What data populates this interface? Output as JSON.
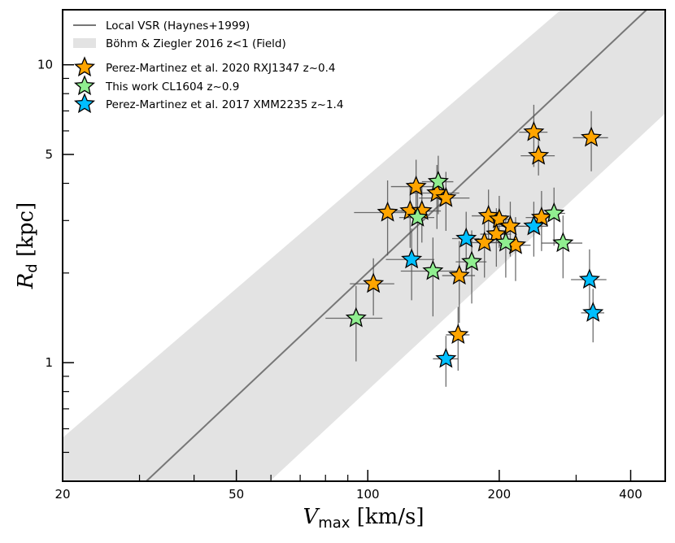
{
  "chart_data": {
    "type": "scatter",
    "title": "",
    "xlabel": "V_max [km/s]",
    "xlabel_main": "V",
    "xlabel_sub": "max",
    "xlabel_unit": " [km/s]",
    "ylabel": "R_d [kpc]",
    "ylabel_main": "R",
    "ylabel_sub": "d",
    "ylabel_unit": " [kpc]",
    "xscale": "log",
    "yscale": "log",
    "xlim": [
      20,
      480
    ],
    "ylim": [
      0.4,
      15.3
    ],
    "xticks": [
      20,
      50,
      100,
      200,
      400
    ],
    "xtick_labels": [
      "20",
      "50",
      "100",
      "200",
      "400"
    ],
    "xminor": [
      30,
      40,
      60,
      70,
      80,
      90,
      300
    ],
    "yticks": [
      1,
      5,
      10
    ],
    "ytick_labels": [
      "1",
      "5",
      "10"
    ],
    "yminor": [
      0.5,
      0.6,
      0.7,
      0.8,
      0.9,
      2,
      3,
      4,
      6,
      7,
      8,
      9
    ],
    "grid": false,
    "legend_placement": "top-left",
    "colors": {
      "line": "#777777",
      "band": "#e3e3e3",
      "orange": "#ffa500",
      "green": "#90ee90",
      "blue": "#00bfff",
      "errbar": "#555555"
    },
    "local_vsr": {
      "label": "Local VSR (Haynes+1999)",
      "points": [
        [
          31.1,
          0.4
        ],
        [
          435,
          15.3
        ]
      ]
    },
    "band": {
      "label": "Böhm & Ziegler 2016 z<1 (Field)",
      "polygon": [
        [
          20,
          0.56
        ],
        [
          20,
          0.4
        ],
        [
          59.7,
          0.4
        ],
        [
          480,
          6.87
        ],
        [
          480,
          15.3
        ],
        [
          277,
          15.3
        ]
      ]
    },
    "series": [
      {
        "name": "Perez-Martinez et al. 2020 RXJ1347 z~0.4",
        "color": "#ffa500",
        "points": [
          {
            "x": 240,
            "y": 5.94,
            "xerr": 18,
            "yerr": 1.4
          },
          {
            "x": 246,
            "y": 4.95,
            "xerr": 22,
            "yerr": 0.7
          },
          {
            "x": 325,
            "y": 5.69,
            "xerr": 30,
            "yerr": 1.3
          },
          {
            "x": 129,
            "y": 3.9,
            "xerr": 16,
            "yerr": 0.9
          },
          {
            "x": 144,
            "y": 3.71,
            "xerr": 18,
            "yerr": 0.9
          },
          {
            "x": 151,
            "y": 3.57,
            "xerr": 20,
            "yerr": 0.8
          },
          {
            "x": 111,
            "y": 3.19,
            "xerr": 18,
            "yerr": 0.9
          },
          {
            "x": 125,
            "y": 3.23,
            "xerr": 14,
            "yerr": 0.8
          },
          {
            "x": 133,
            "y": 3.23,
            "xerr": 14,
            "yerr": 0.7
          },
          {
            "x": 189,
            "y": 3.11,
            "xerr": 16,
            "yerr": 0.7
          },
          {
            "x": 200,
            "y": 3.03,
            "xerr": 14,
            "yerr": 0.6
          },
          {
            "x": 212,
            "y": 2.87,
            "xerr": 16,
            "yerr": 0.6
          },
          {
            "x": 250,
            "y": 3.07,
            "xerr": 20,
            "yerr": 0.7
          },
          {
            "x": 197,
            "y": 2.7,
            "xerr": 16,
            "yerr": 0.6
          },
          {
            "x": 185,
            "y": 2.53,
            "xerr": 16,
            "yerr": 0.6
          },
          {
            "x": 218,
            "y": 2.48,
            "xerr": 18,
            "yerr": 0.6
          },
          {
            "x": 162,
            "y": 1.96,
            "xerr": 14,
            "yerr": 0.6
          },
          {
            "x": 103,
            "y": 1.84,
            "xerr": 12,
            "yerr": 0.4
          },
          {
            "x": 161,
            "y": 1.24,
            "xerr": 10,
            "yerr": 0.3
          }
        ]
      },
      {
        "name": "This work CL1604 z~0.9",
        "color": "#90ee90",
        "points": [
          {
            "x": 145,
            "y": 4.05,
            "xerr": 12,
            "yerr": 0.9
          },
          {
            "x": 130,
            "y": 3.07,
            "xerr": 12,
            "yerr": 0.8
          },
          {
            "x": 267,
            "y": 3.17,
            "xerr": 16,
            "yerr": 0.7
          },
          {
            "x": 207,
            "y": 2.53,
            "xerr": 16,
            "yerr": 0.6
          },
          {
            "x": 280,
            "y": 2.52,
            "xerr": 30,
            "yerr": 0.6
          },
          {
            "x": 173,
            "y": 2.18,
            "xerr": 14,
            "yerr": 0.6
          },
          {
            "x": 141,
            "y": 2.03,
            "xerr": 22,
            "yerr": 0.6
          },
          {
            "x": 94,
            "y": 1.41,
            "xerr": 14,
            "yerr": 0.4
          }
        ]
      },
      {
        "name": "Perez-Martinez et al. 2017 XMM2235 z~1.4",
        "color": "#00bfff",
        "points": [
          {
            "x": 168,
            "y": 2.61,
            "xerr": 12,
            "yerr": 0.6
          },
          {
            "x": 240,
            "y": 2.87,
            "xerr": 18,
            "yerr": 0.6
          },
          {
            "x": 126,
            "y": 2.22,
            "xerr": 16,
            "yerr": 0.6
          },
          {
            "x": 322,
            "y": 1.9,
            "xerr": 30,
            "yerr": 0.5
          },
          {
            "x": 328,
            "y": 1.47,
            "xerr": 20,
            "yerr": 0.3
          },
          {
            "x": 151,
            "y": 1.03,
            "xerr": 10,
            "yerr": 0.2
          }
        ]
      }
    ]
  }
}
